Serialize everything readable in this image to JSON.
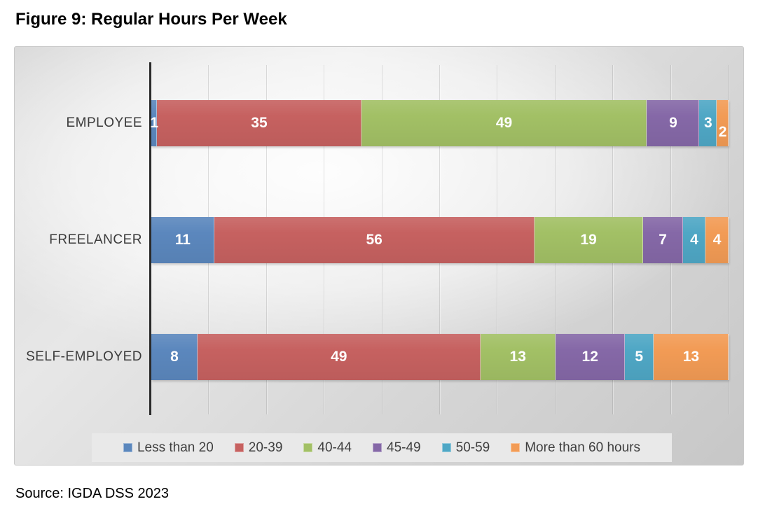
{
  "chart_data": {
    "type": "bar",
    "variant": "100%-stacked-horizontal",
    "title": "Figure 9: Regular Hours Per Week",
    "source": "Source: IGDA DSS 2023",
    "categories": [
      "EMPLOYEE",
      "FREELANCER",
      "SELF-EMPLOYED"
    ],
    "series": [
      {
        "name": "Less than 20",
        "color": "#5b87bd",
        "values": [
          1,
          11,
          8
        ]
      },
      {
        "name": "20-39",
        "color": "#c66160",
        "values": [
          35,
          56,
          49
        ]
      },
      {
        "name": "40-44",
        "color": "#a2c065",
        "values": [
          49,
          19,
          13
        ]
      },
      {
        "name": "45-49",
        "color": "#8568a7",
        "values": [
          9,
          7,
          12
        ]
      },
      {
        "name": "50-59",
        "color": "#4fa7c5",
        "values": [
          3,
          4,
          5
        ]
      },
      {
        "name": "More than 60 hours",
        "color": "#f29b55",
        "values": [
          2,
          4,
          13
        ]
      }
    ],
    "axis": {
      "min": 0,
      "max": 100,
      "gridline_step_percent": 10,
      "gridlines_visible": true
    },
    "legend_position": "bottom",
    "data_labels": "inside-center-white",
    "label_adjustments": [
      {
        "category_index": 0,
        "series_index": 5,
        "dy": 13
      }
    ]
  }
}
